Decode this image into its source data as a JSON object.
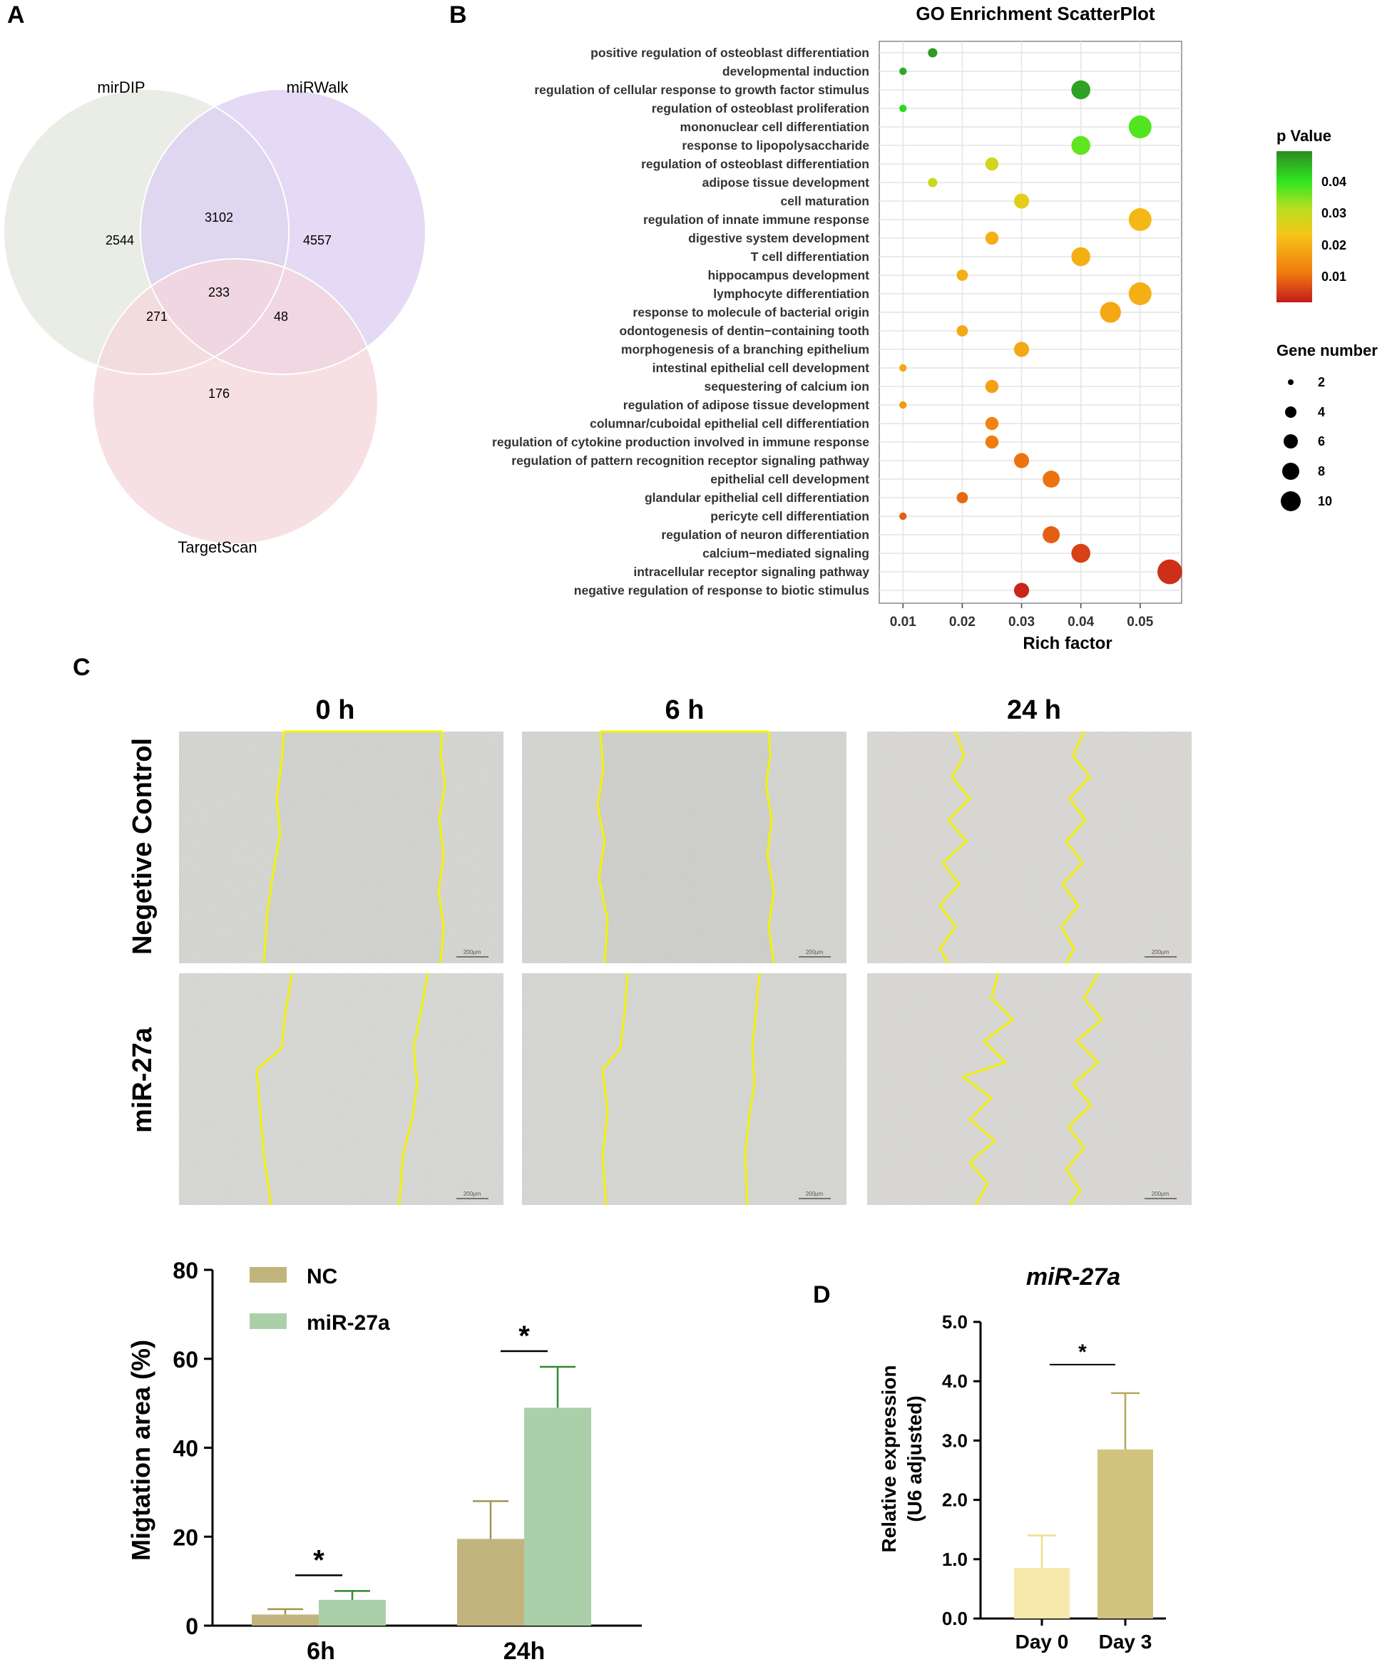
{
  "panels": {
    "a": "A",
    "b": "B",
    "c": "C",
    "d": "D"
  },
  "chart_data": [
    {
      "type": "venn",
      "sets": [
        "mirDIP",
        "miRWalk",
        "TargetScan"
      ],
      "regions": {
        "mirDIP_only": "2544",
        "miRWalk_only": "4557",
        "TargetScan_only": "176",
        "mirDIP_miRWalk": "3102",
        "mirDIP_TargetScan": "271",
        "miRWalk_TargetScan": "48",
        "all_three": "233"
      },
      "colors": {
        "mirDIP": "#e1e7de",
        "miRWalk": "#dbcef1",
        "TargetScan": "#f4d5db"
      }
    },
    {
      "type": "scatter",
      "title": "GO Enrichment ScatterPlot",
      "xlabel": "Rich factor",
      "xlim": [
        0.006,
        0.057
      ],
      "xticks": [
        0.01,
        0.02,
        0.03,
        0.04,
        0.05
      ],
      "xtick_labels": [
        "0.01",
        "0.02",
        "0.03",
        "0.04",
        "0.05"
      ],
      "terms": [
        "positive regulation of osteoblast differentiation",
        "developmental induction",
        "regulation of cellular response to growth factor stimulus",
        "regulation of osteoblast proliferation",
        "mononuclear cell differentiation",
        "response to lipopolysaccharide",
        "regulation of osteoblast differentiation",
        "adipose tissue development",
        "cell maturation",
        "regulation of innate immune response",
        "digestive system development",
        "T cell differentiation",
        "hippocampus development",
        "lymphocyte differentiation",
        "response to molecule of bacterial origin",
        "odontogenesis of dentin−containing tooth",
        "morphogenesis of a branching epithelium",
        "intestinal epithelial cell development",
        "sequestering of calcium ion",
        "regulation of adipose tissue development",
        "columnar/cuboidal epithelial cell differentiation",
        "regulation of cytokine production involved in immune response",
        "regulation of pattern recognition receptor signaling pathway",
        "epithelial cell development",
        "glandular epithelial cell differentiation",
        "pericyte cell differentiation",
        "regulation of neuron differentiation",
        "calcium−mediated signaling",
        "intracellular receptor signaling pathway",
        "negative regulation of response to biotic stimulus"
      ],
      "rich_factor": [
        0.015,
        0.01,
        0.04,
        0.01,
        0.05,
        0.04,
        0.025,
        0.015,
        0.03,
        0.05,
        0.025,
        0.04,
        0.02,
        0.05,
        0.045,
        0.02,
        0.03,
        0.01,
        0.025,
        0.01,
        0.025,
        0.025,
        0.03,
        0.035,
        0.02,
        0.01,
        0.035,
        0.04,
        0.055,
        0.03
      ],
      "gene_number": [
        3,
        2,
        8,
        2,
        10,
        8,
        5,
        3,
        6,
        10,
        5,
        8,
        4,
        10,
        9,
        4,
        6,
        2,
        5,
        2,
        5,
        5,
        6,
        7,
        4,
        2,
        7,
        8,
        11,
        6
      ],
      "p_value": [
        0.045,
        0.043,
        0.044,
        0.037,
        0.033,
        0.032,
        0.024,
        0.025,
        0.022,
        0.018,
        0.017,
        0.017,
        0.017,
        0.017,
        0.016,
        0.016,
        0.016,
        0.016,
        0.015,
        0.014,
        0.011,
        0.01,
        0.009,
        0.009,
        0.008,
        0.007,
        0.007,
        0.004,
        0.002,
        0.001
      ],
      "color_legend": {
        "title": "p Value",
        "ticks": [
          "0.04",
          "0.03",
          "0.02",
          "0.01"
        ],
        "colors": [
          "#c51b1b",
          "#f07d0e",
          "#f5c518",
          "#b8e020",
          "#2fe620",
          "#2f8a24"
        ]
      },
      "size_legend": {
        "title": "Gene number",
        "values": [
          "2",
          "4",
          "6",
          "8",
          "10"
        ]
      }
    },
    {
      "type": "image_grid",
      "columns": [
        "0 h",
        "6 h",
        "24 h"
      ],
      "rows": [
        "Negetive Control",
        "miR-27a"
      ],
      "scale_bar": "200μm"
    },
    {
      "type": "bar",
      "categories": [
        "6h",
        "24h"
      ],
      "series": [
        {
          "name": "NC",
          "values": [
            2.5,
            19.5
          ],
          "errors": [
            1.2,
            8.5
          ],
          "color": "#c2b47d"
        },
        {
          "name": "miR-27a",
          "values": [
            5.8,
            49
          ],
          "errors": [
            2,
            9.2
          ],
          "color": "#abd0a9"
        }
      ],
      "ylabel": "Migtation area (%)",
      "ylim": [
        0,
        80
      ],
      "yticks": [
        "0",
        "20",
        "40",
        "60",
        "80"
      ],
      "significance": [
        "*",
        "*"
      ]
    },
    {
      "type": "bar",
      "title": "miR-27a",
      "categories": [
        "Day 0",
        "Day 3"
      ],
      "values": [
        0.85,
        2.85
      ],
      "errors": [
        0.55,
        0.95
      ],
      "colors": [
        "#f7e8ab",
        "#d2c47e"
      ],
      "ylabel": "Relative expression",
      "ylabel2": "(U6 adjusted)",
      "ylim": [
        0,
        5
      ],
      "yticks": [
        "0.0",
        "1.0",
        "2.0",
        "3.0",
        "4.0",
        "5.0"
      ],
      "significance": "*"
    }
  ]
}
